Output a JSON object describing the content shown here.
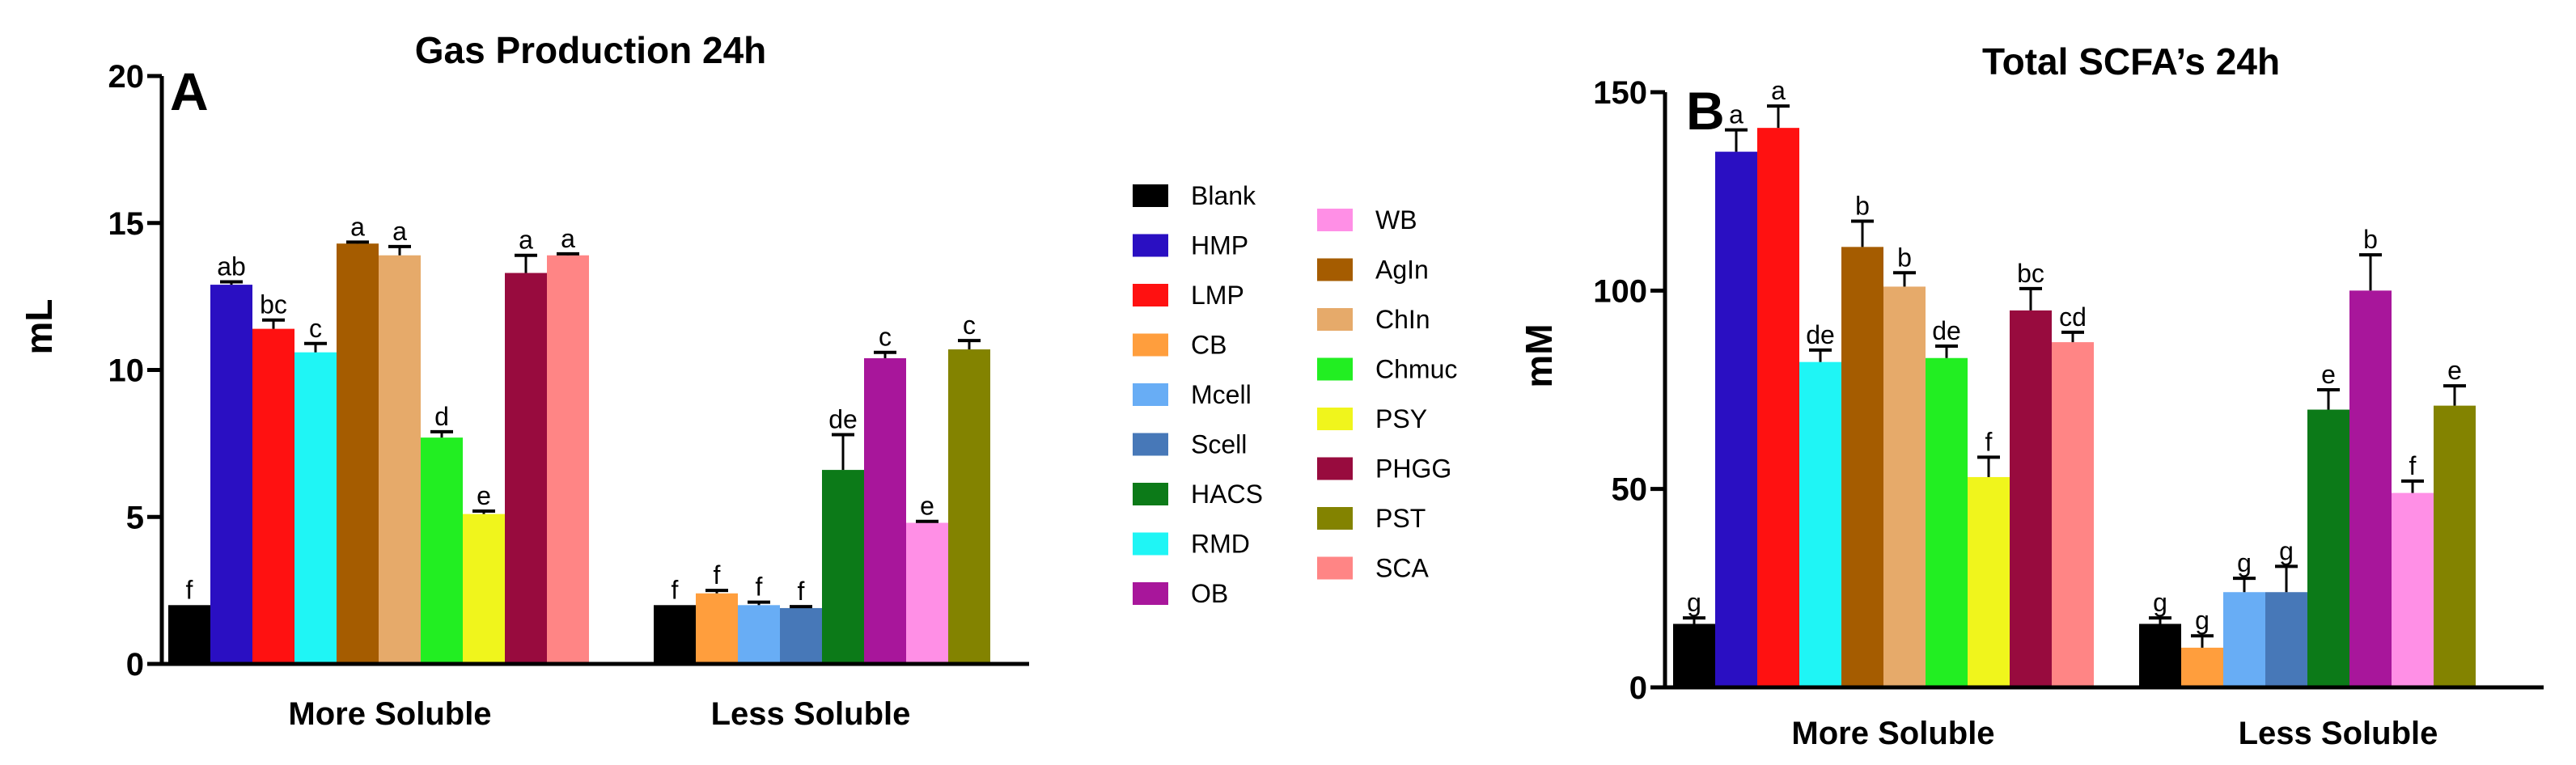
{
  "legend": {
    "entries": [
      {
        "name": "Blank",
        "color": "#000000"
      },
      {
        "name": "HMP",
        "color": "#2a0fc2"
      },
      {
        "name": "LMP",
        "color": "#ff1111"
      },
      {
        "name": "CB",
        "color": "#ff9e3d"
      },
      {
        "name": "Mcell",
        "color": "#68adf5"
      },
      {
        "name": "Scell",
        "color": "#4778b8"
      },
      {
        "name": "HACS",
        "color": "#0c7a18"
      },
      {
        "name": "RMD",
        "color": "#1ff5f5"
      },
      {
        "name": "OB",
        "color": "#a8169b"
      },
      {
        "name": "WB",
        "color": "#ff8fe6"
      },
      {
        "name": "AgIn",
        "color": "#a55c00"
      },
      {
        "name": "ChIn",
        "color": "#e6aa6a"
      },
      {
        "name": "Chmuc",
        "color": "#22ee22"
      },
      {
        "name": "PSY",
        "color": "#f0f51c"
      },
      {
        "name": "PHGG",
        "color": "#980b3e"
      },
      {
        "name": "PST",
        "color": "#838300"
      },
      {
        "name": "SCA",
        "color": "#ff8585"
      }
    ]
  },
  "chart_data": [
    {
      "type": "bar",
      "panel": "A",
      "title": "Gas Production 24h",
      "xlabel": "",
      "ylabel": "mL",
      "ylim": [
        0,
        20
      ],
      "yticks": [
        0,
        5,
        10,
        15,
        20
      ],
      "categories": [
        "More Soluble",
        "Less Soluble"
      ],
      "groups": [
        {
          "category": "More Soluble",
          "bars": [
            {
              "series": "Blank",
              "value": 2.0,
              "error": 0,
              "sig": "f"
            },
            {
              "series": "HMP",
              "value": 12.9,
              "error": 0.1,
              "sig": "ab"
            },
            {
              "series": "LMP",
              "value": 11.4,
              "error": 0.3,
              "sig": "bc"
            },
            {
              "series": "RMD",
              "value": 10.6,
              "error": 0.3,
              "sig": "c"
            },
            {
              "series": "AgIn",
              "value": 14.3,
              "error": 0.05,
              "sig": "a"
            },
            {
              "series": "ChIn",
              "value": 13.9,
              "error": 0.3,
              "sig": "a"
            },
            {
              "series": "Chmuc",
              "value": 7.7,
              "error": 0.2,
              "sig": "d"
            },
            {
              "series": "PSY",
              "value": 5.1,
              "error": 0.1,
              "sig": "e"
            },
            {
              "series": "PHGG",
              "value": 13.3,
              "error": 0.6,
              "sig": "a"
            },
            {
              "series": "SCA",
              "value": 13.9,
              "error": 0.05,
              "sig": "a"
            }
          ]
        },
        {
          "category": "Less Soluble",
          "bars": [
            {
              "series": "Blank",
              "value": 2.0,
              "error": 0,
              "sig": "f"
            },
            {
              "series": "CB",
              "value": 2.4,
              "error": 0.1,
              "sig": "f"
            },
            {
              "series": "Mcell",
              "value": 2.0,
              "error": 0.1,
              "sig": "f"
            },
            {
              "series": "Scell",
              "value": 1.9,
              "error": 0.05,
              "sig": "f"
            },
            {
              "series": "HACS",
              "value": 6.6,
              "error": 1.2,
              "sig": "de"
            },
            {
              "series": "OB",
              "value": 10.4,
              "error": 0.2,
              "sig": "c"
            },
            {
              "series": "WB",
              "value": 4.8,
              "error": 0.05,
              "sig": "e"
            },
            {
              "series": "PST",
              "value": 10.7,
              "error": 0.3,
              "sig": "c"
            }
          ]
        }
      ]
    },
    {
      "type": "bar",
      "panel": "B",
      "title": "Total SCFA’s 24h",
      "xlabel": "",
      "ylabel": "mM",
      "ylim": [
        0,
        150
      ],
      "yticks": [
        0,
        50,
        100,
        150
      ],
      "categories": [
        "More Soluble",
        "Less Soluble"
      ],
      "groups": [
        {
          "category": "More Soluble",
          "bars": [
            {
              "series": "Blank",
              "value": 16,
              "error": 1.5,
              "sig": "g"
            },
            {
              "series": "HMP",
              "value": 135,
              "error": 5.5,
              "sig": "a"
            },
            {
              "series": "LMP",
              "value": 141,
              "error": 5.5,
              "sig": "a"
            },
            {
              "series": "RMD",
              "value": 82,
              "error": 3,
              "sig": "de"
            },
            {
              "series": "AgIn",
              "value": 111,
              "error": 6.5,
              "sig": "b"
            },
            {
              "series": "ChIn",
              "value": 101,
              "error": 3.5,
              "sig": "b"
            },
            {
              "series": "Chmuc",
              "value": 83,
              "error": 3,
              "sig": "de"
            },
            {
              "series": "PSY",
              "value": 53,
              "error": 5,
              "sig": "f"
            },
            {
              "series": "PHGG",
              "value": 95,
              "error": 5.5,
              "sig": "bc"
            },
            {
              "series": "SCA",
              "value": 87,
              "error": 2.5,
              "sig": "cd"
            }
          ]
        },
        {
          "category": "Less Soluble",
          "bars": [
            {
              "series": "Blank",
              "value": 16,
              "error": 1.5,
              "sig": "g"
            },
            {
              "series": "CB",
              "value": 10,
              "error": 3,
              "sig": "g"
            },
            {
              "series": "Mcell",
              "value": 24,
              "error": 3.5,
              "sig": "g"
            },
            {
              "series": "Scell",
              "value": 24,
              "error": 6.5,
              "sig": "g"
            },
            {
              "series": "HACS",
              "value": 70,
              "error": 5,
              "sig": "e"
            },
            {
              "series": "OB",
              "value": 100,
              "error": 9,
              "sig": "b"
            },
            {
              "series": "WB",
              "value": 49,
              "error": 3,
              "sig": "f"
            },
            {
              "series": "PST",
              "value": 71,
              "error": 5,
              "sig": "e"
            }
          ]
        }
      ]
    }
  ]
}
